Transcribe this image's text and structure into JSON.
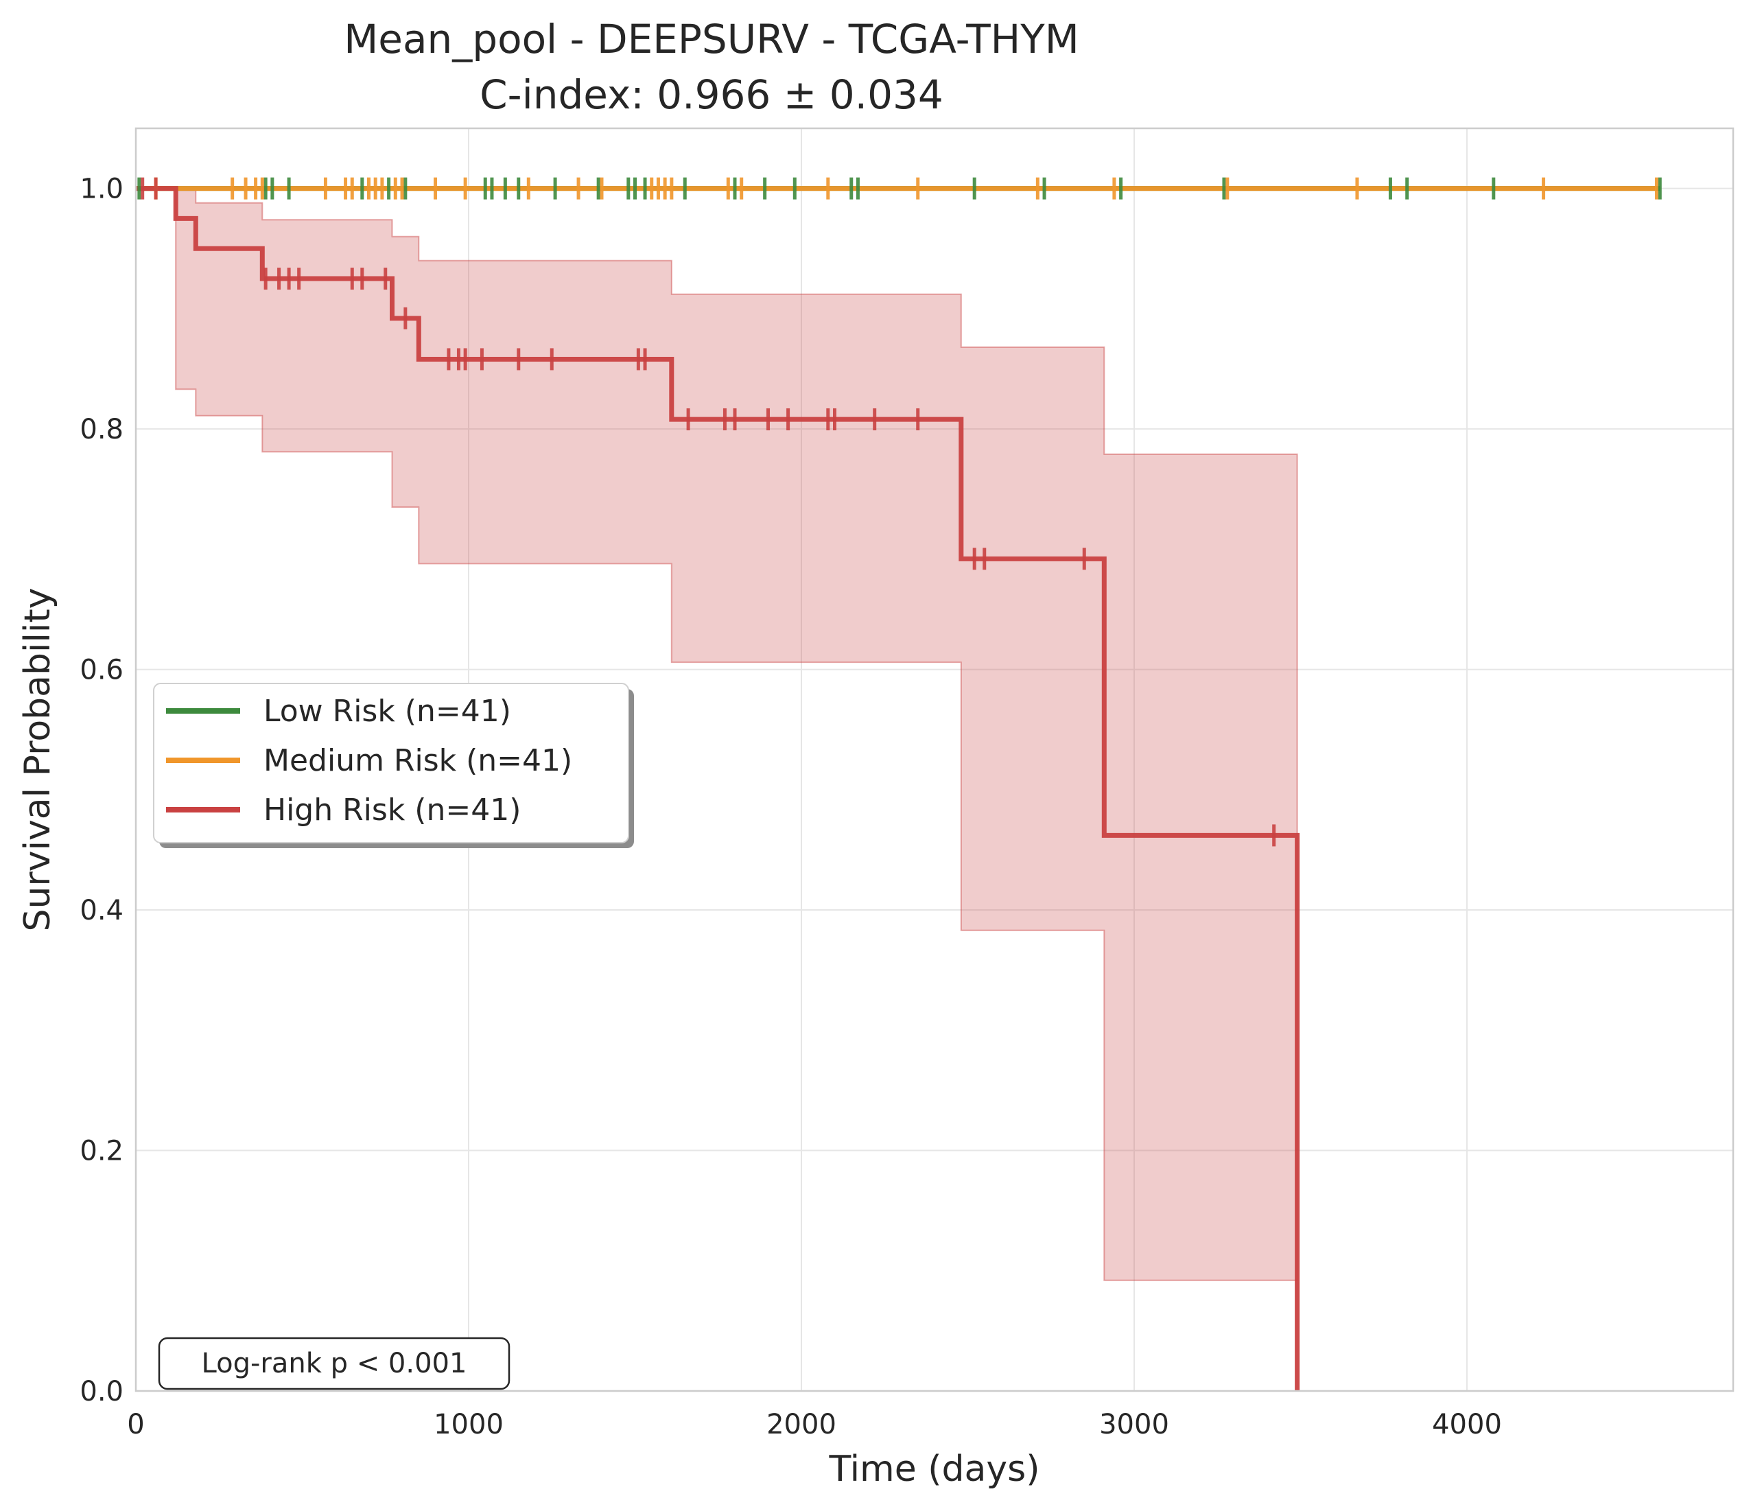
{
  "chart_data": {
    "type": "line",
    "title": "Mean_pool - DEEPSURV - TCGA-THYM",
    "subtitle": "C-index: 0.966 ± 0.034",
    "xlabel": "Time (days)",
    "ylabel": "Survival Probability",
    "xlim": [
      0,
      4800
    ],
    "ylim": [
      0,
      1.05
    ],
    "xticks": [
      0,
      1000,
      2000,
      3000,
      4000
    ],
    "xtick_labels": [
      "0",
      "1000",
      "2000",
      "3000",
      "4000"
    ],
    "yticks": [
      0,
      0.2,
      0.4,
      0.6,
      0.8,
      1.0
    ],
    "ytick_labels": [
      "0.0",
      "0.2",
      "0.4",
      "0.6",
      "0.8",
      "1.0"
    ],
    "grid": true,
    "legend_position": "center-left",
    "annotation": "Log-rank p < 0.001",
    "series": [
      {
        "name": "Low Risk (n=41)",
        "color": "#3d8a3d",
        "steps": [
          [
            0,
            1.0
          ],
          [
            4580,
            1.0
          ]
        ],
        "censored": [
          [
            10,
            1.0
          ],
          [
            390,
            1.0
          ],
          [
            410,
            1.0
          ],
          [
            460,
            1.0
          ],
          [
            680,
            1.0
          ],
          [
            760,
            1.0
          ],
          [
            810,
            1.0
          ],
          [
            1050,
            1.0
          ],
          [
            1070,
            1.0
          ],
          [
            1110,
            1.0
          ],
          [
            1150,
            1.0
          ],
          [
            1260,
            1.0
          ],
          [
            1390,
            1.0
          ],
          [
            1480,
            1.0
          ],
          [
            1500,
            1.0
          ],
          [
            1530,
            1.0
          ],
          [
            1650,
            1.0
          ],
          [
            1800,
            1.0
          ],
          [
            1890,
            1.0
          ],
          [
            1980,
            1.0
          ],
          [
            2150,
            1.0
          ],
          [
            2170,
            1.0
          ],
          [
            2520,
            1.0
          ],
          [
            2730,
            1.0
          ],
          [
            2960,
            1.0
          ],
          [
            3270,
            1.0
          ],
          [
            3770,
            1.0
          ],
          [
            3820,
            1.0
          ],
          [
            4080,
            1.0
          ],
          [
            4580,
            1.0
          ]
        ]
      },
      {
        "name": "Medium Risk (n=41)",
        "color": "#f0962b",
        "steps": [
          [
            0,
            1.0
          ],
          [
            4570,
            1.0
          ]
        ],
        "censored": [
          [
            60,
            1.0
          ],
          [
            290,
            1.0
          ],
          [
            330,
            1.0
          ],
          [
            360,
            1.0
          ],
          [
            380,
            1.0
          ],
          [
            570,
            1.0
          ],
          [
            630,
            1.0
          ],
          [
            650,
            1.0
          ],
          [
            700,
            1.0
          ],
          [
            720,
            1.0
          ],
          [
            740,
            1.0
          ],
          [
            780,
            1.0
          ],
          [
            800,
            1.0
          ],
          [
            900,
            1.0
          ],
          [
            990,
            1.0
          ],
          [
            1180,
            1.0
          ],
          [
            1330,
            1.0
          ],
          [
            1400,
            1.0
          ],
          [
            1550,
            1.0
          ],
          [
            1570,
            1.0
          ],
          [
            1590,
            1.0
          ],
          [
            1610,
            1.0
          ],
          [
            1780,
            1.0
          ],
          [
            1820,
            1.0
          ],
          [
            2080,
            1.0
          ],
          [
            2350,
            1.0
          ],
          [
            2710,
            1.0
          ],
          [
            2940,
            1.0
          ],
          [
            3280,
            1.0
          ],
          [
            3670,
            1.0
          ],
          [
            4230,
            1.0
          ],
          [
            4570,
            1.0
          ]
        ]
      },
      {
        "name": "High Risk (n=41)",
        "color": "#c94141",
        "steps": [
          [
            0,
            1.0
          ],
          [
            120,
            1.0
          ],
          [
            120,
            0.975
          ],
          [
            180,
            0.975
          ],
          [
            180,
            0.95
          ],
          [
            380,
            0.95
          ],
          [
            380,
            0.925
          ],
          [
            770,
            0.925
          ],
          [
            770,
            0.892
          ],
          [
            850,
            0.892
          ],
          [
            850,
            0.858
          ],
          [
            1610,
            0.858
          ],
          [
            1610,
            0.808
          ],
          [
            2480,
            0.808
          ],
          [
            2480,
            0.692
          ],
          [
            2910,
            0.692
          ],
          [
            2910,
            0.462
          ],
          [
            3490,
            0.462
          ],
          [
            3490,
            0.0
          ]
        ],
        "censored": [
          [
            20,
            1.0
          ],
          [
            60,
            1.0
          ],
          [
            390,
            0.925
          ],
          [
            430,
            0.925
          ],
          [
            460,
            0.925
          ],
          [
            490,
            0.925
          ],
          [
            650,
            0.925
          ],
          [
            680,
            0.925
          ],
          [
            750,
            0.925
          ],
          [
            810,
            0.892
          ],
          [
            940,
            0.858
          ],
          [
            970,
            0.858
          ],
          [
            990,
            0.858
          ],
          [
            1040,
            0.858
          ],
          [
            1150,
            0.858
          ],
          [
            1250,
            0.858
          ],
          [
            1510,
            0.858
          ],
          [
            1530,
            0.858
          ],
          [
            1660,
            0.808
          ],
          [
            1770,
            0.808
          ],
          [
            1800,
            0.808
          ],
          [
            1900,
            0.808
          ],
          [
            1960,
            0.808
          ],
          [
            2080,
            0.808
          ],
          [
            2100,
            0.808
          ],
          [
            2220,
            0.808
          ],
          [
            2350,
            0.808
          ],
          [
            2520,
            0.692
          ],
          [
            2550,
            0.692
          ],
          [
            2850,
            0.692
          ],
          [
            3420,
            0.462
          ]
        ],
        "ci_band": [
          [
            0,
            1.0,
            1.0
          ],
          [
            120,
            0.833,
            1.0
          ],
          [
            180,
            0.811,
            0.988
          ],
          [
            380,
            0.781,
            0.974
          ],
          [
            770,
            0.735,
            0.96
          ],
          [
            850,
            0.688,
            0.94
          ],
          [
            1610,
            0.606,
            0.912
          ],
          [
            2480,
            0.383,
            0.868
          ],
          [
            2910,
            0.092,
            0.779
          ],
          [
            3490,
            0.092,
            0.779
          ]
        ]
      }
    ]
  }
}
